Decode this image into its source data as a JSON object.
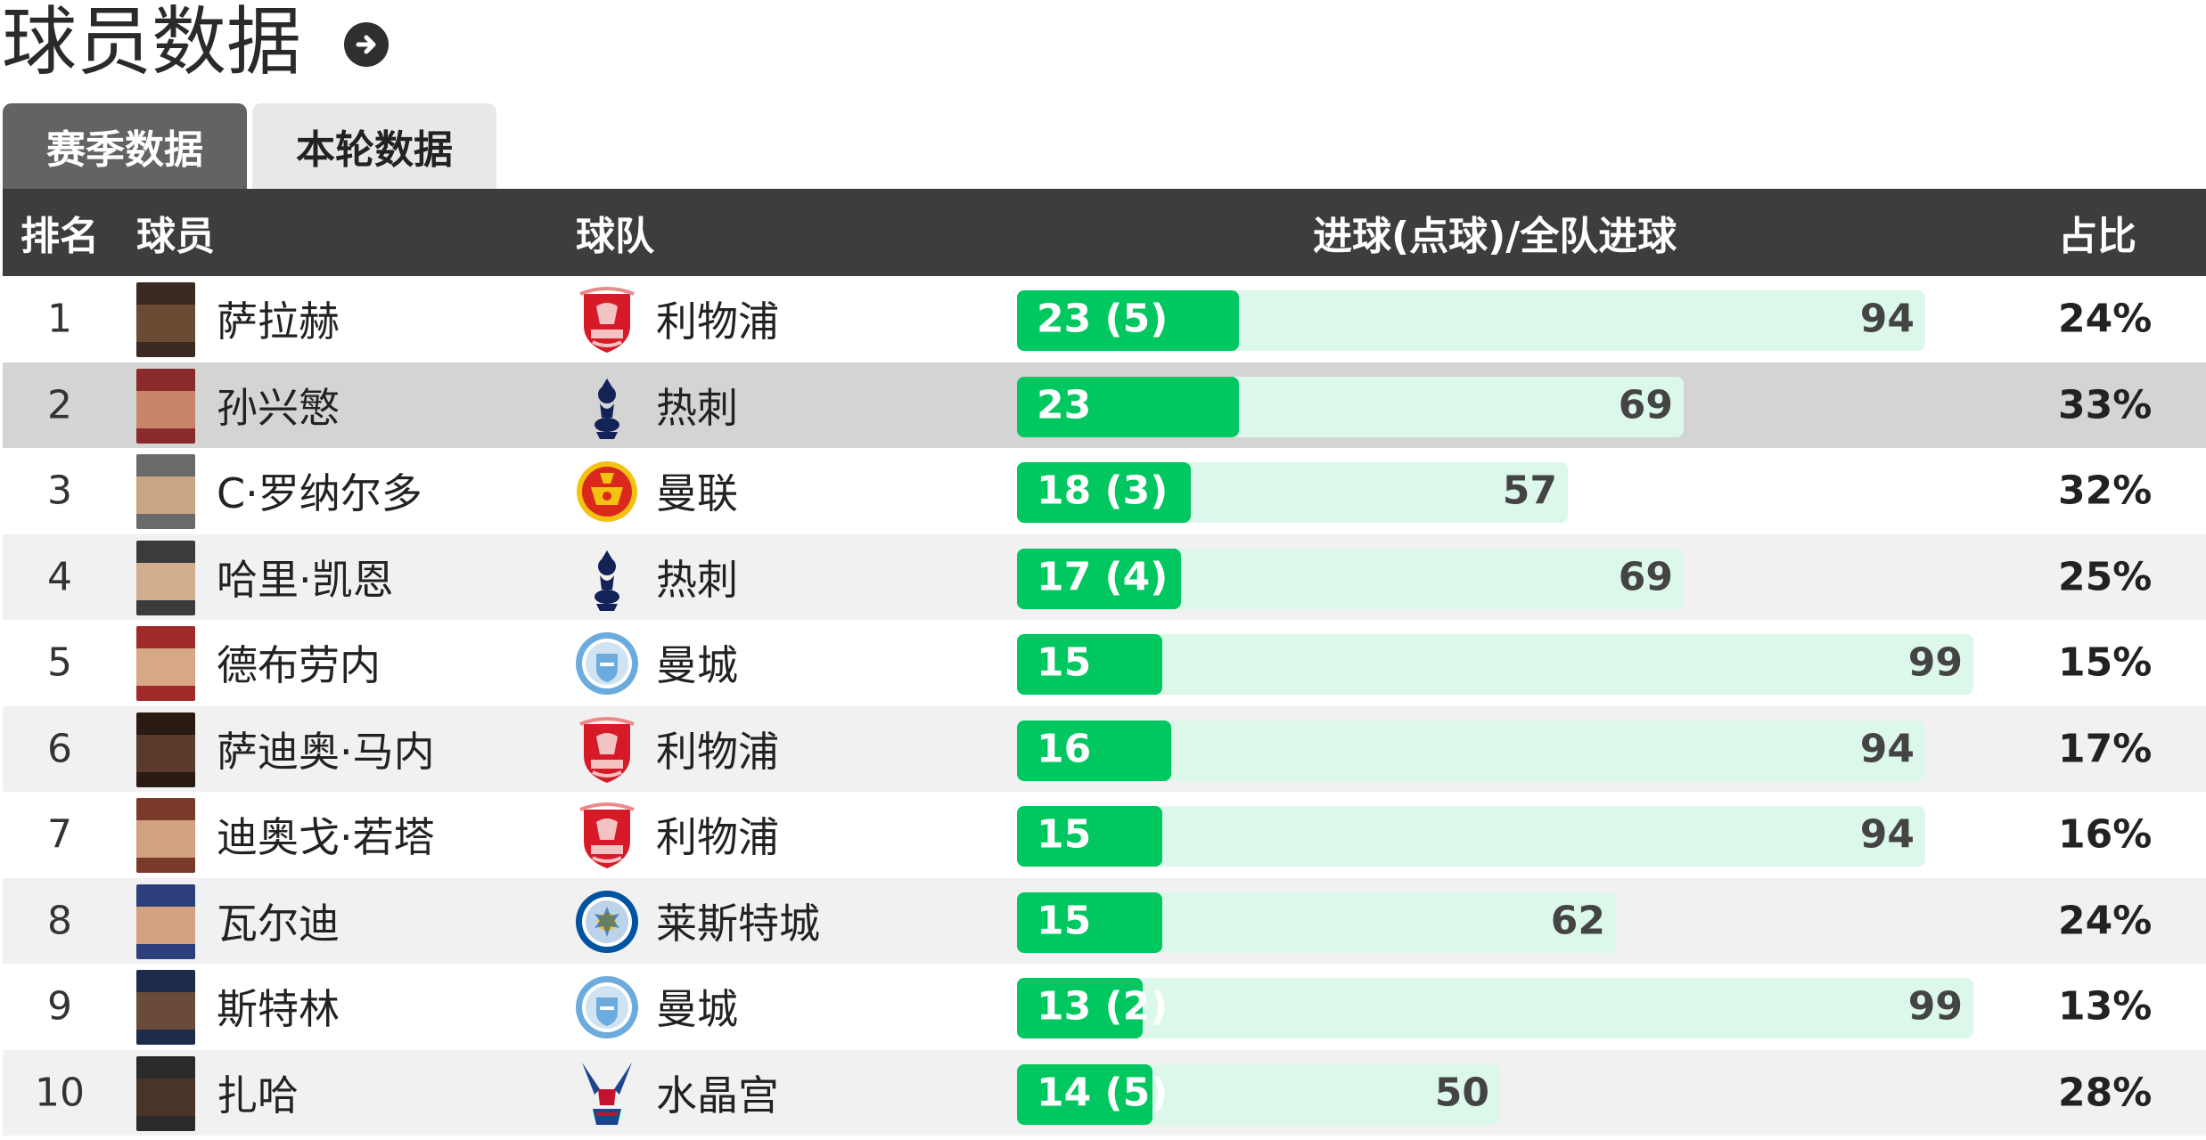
{
  "page": {
    "title": "球员数据"
  },
  "tabs": [
    {
      "label": "赛季数据",
      "active": true
    },
    {
      "label": "本轮数据",
      "active": false
    }
  ],
  "table": {
    "headers": {
      "rank": "排名",
      "player": "球员",
      "team": "球队",
      "goals": "进球(点球)/全队进球",
      "share": "占比"
    },
    "rows": [
      {
        "rank": "1",
        "player": "萨拉赫",
        "team": "利物浦",
        "goals_label": "23 (5)",
        "goals": 23,
        "team_goals": "94",
        "share": "24%",
        "crest": "liverpool-crest",
        "highlight": false
      },
      {
        "rank": "2",
        "player": "孙兴慜",
        "team": "热刺",
        "goals_label": "23",
        "goals": 23,
        "team_goals": "69",
        "share": "33%",
        "crest": "tottenham-crest",
        "highlight": true
      },
      {
        "rank": "3",
        "player": "C·罗纳尔多",
        "team": "曼联",
        "goals_label": "18 (3)",
        "goals": 18,
        "team_goals": "57",
        "share": "32%",
        "crest": "manutd-crest",
        "highlight": false
      },
      {
        "rank": "4",
        "player": "哈里·凯恩",
        "team": "热刺",
        "goals_label": "17 (4)",
        "goals": 17,
        "team_goals": "69",
        "share": "25%",
        "crest": "tottenham-crest",
        "highlight": false
      },
      {
        "rank": "5",
        "player": "德布劳内",
        "team": "曼城",
        "goals_label": "15",
        "goals": 15,
        "team_goals": "99",
        "share": "15%",
        "crest": "mancity-crest",
        "highlight": false
      },
      {
        "rank": "6",
        "player": "萨迪奥·马内",
        "team": "利物浦",
        "goals_label": "16",
        "goals": 16,
        "team_goals": "94",
        "share": "17%",
        "crest": "liverpool-crest",
        "highlight": false
      },
      {
        "rank": "7",
        "player": "迪奥戈·若塔",
        "team": "利物浦",
        "goals_label": "15",
        "goals": 15,
        "team_goals": "94",
        "share": "16%",
        "crest": "liverpool-crest",
        "highlight": false
      },
      {
        "rank": "8",
        "player": "瓦尔迪",
        "team": "莱斯特城",
        "goals_label": "15",
        "goals": 15,
        "team_goals": "62",
        "share": "24%",
        "crest": "leicester-crest",
        "highlight": false
      },
      {
        "rank": "9",
        "player": "斯特林",
        "team": "曼城",
        "goals_label": "13 (2)",
        "goals": 13,
        "team_goals": "99",
        "share": "13%",
        "crest": "mancity-crest",
        "highlight": false
      },
      {
        "rank": "10",
        "player": "扎哈",
        "team": "水晶宫",
        "goals_label": "14 (5)",
        "goals": 14,
        "team_goals": "50",
        "share": "28%",
        "crest": "crystalpalace-crest",
        "highlight": false
      }
    ]
  },
  "colors": {
    "bar_goals": "#00c75f",
    "bar_team": "#dcf8ea",
    "header_bg": "#3d3d3d",
    "tab_active": "#636363",
    "row_highlight": "#d4d4d4"
  }
}
